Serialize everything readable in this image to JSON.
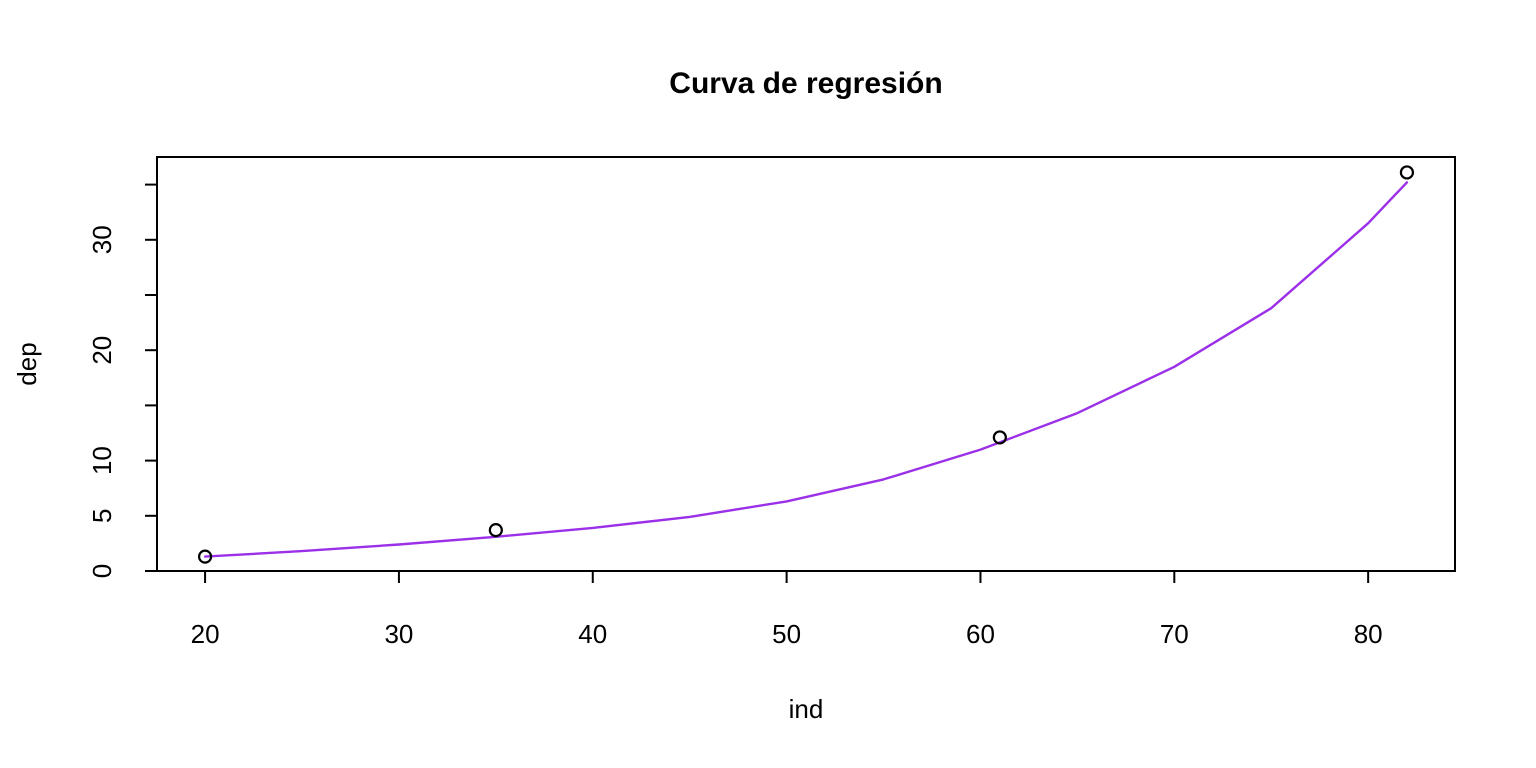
{
  "chart_data": {
    "type": "scatter",
    "title": "Curva de regresión",
    "xlabel": "ind",
    "ylabel": "dep",
    "xlim": [
      17.52,
      84.48
    ],
    "ylim": [
      0,
      37.5
    ],
    "x_ticks": [
      20,
      30,
      40,
      50,
      60,
      70,
      80
    ],
    "y_ticks_labeled": [
      0,
      5,
      10,
      20,
      30
    ],
    "y_ticks_all": [
      0,
      5,
      10,
      15,
      20,
      25,
      30,
      35
    ],
    "grid": false,
    "legend": "none",
    "series": [
      {
        "kind": "points",
        "marker": "open-circle",
        "color": "#000000",
        "x": [
          20,
          35,
          61,
          82
        ],
        "y": [
          1.3,
          3.7,
          12.1,
          36.1
        ]
      },
      {
        "kind": "line",
        "color": "#9B30E8",
        "x": [
          20,
          25,
          30,
          35,
          40,
          45,
          50,
          55,
          60,
          65,
          70,
          75,
          80,
          82
        ],
        "y": [
          1.3,
          1.8,
          2.4,
          3.1,
          3.9,
          4.9,
          6.3,
          8.3,
          11.0,
          14.3,
          18.5,
          23.8,
          31.5,
          35.2
        ]
      }
    ]
  }
}
